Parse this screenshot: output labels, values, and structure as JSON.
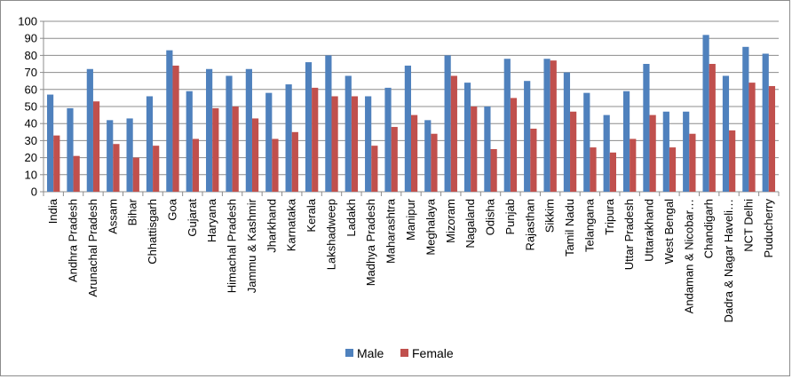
{
  "chart_data": {
    "type": "bar",
    "ylim": [
      0,
      100
    ],
    "yticks": [
      0,
      10,
      20,
      30,
      40,
      50,
      60,
      70,
      80,
      90,
      100
    ],
    "grid": true,
    "legend_position": "bottom",
    "categories": [
      "India",
      "Andhra Pradesh",
      "Arunachal Pradesh",
      "Assam",
      "Bihar",
      "Chhattisgarh",
      "Goa",
      "Gujarat",
      "Haryana",
      "Himachal Pradesh",
      "Jammu & Kashmir",
      "Jharkhand",
      "Karnataka",
      "Kerala",
      "Lakshadweep",
      "Ladakh",
      "Madhya Pradesh",
      "Maharashtra",
      "Manipur",
      "Meghalaya",
      "Mizoram",
      "Nagaland",
      "Odisha",
      "Punjab",
      "Rajasthan",
      "Sikkim",
      "Tamil Nadu",
      "Telangana",
      "Tripura",
      "Uttar Pradesh",
      "Uttarakhand",
      "West Bengal",
      "Andaman & Nicobar…",
      "Chandigarh",
      "Dadra & Nagar Haveli…",
      "NCT Delhi",
      "Puducherry"
    ],
    "series": [
      {
        "name": "Male",
        "color": "#4f81bd",
        "values": [
          57,
          49,
          72,
          42,
          43,
          56,
          83,
          59,
          72,
          68,
          72,
          58,
          63,
          76,
          80,
          68,
          56,
          61,
          74,
          42,
          80,
          64,
          50,
          78,
          65,
          78,
          70,
          58,
          45,
          59,
          75,
          47,
          47,
          92,
          68,
          85,
          81
        ]
      },
      {
        "name": "Female",
        "color": "#c0504d",
        "values": [
          33,
          21,
          53,
          28,
          20,
          27,
          74,
          31,
          49,
          50,
          43,
          31,
          35,
          61,
          56,
          56,
          27,
          38,
          45,
          34,
          68,
          50,
          25,
          55,
          37,
          77,
          47,
          26,
          23,
          31,
          45,
          26,
          34,
          75,
          36,
          64,
          62
        ]
      }
    ]
  }
}
